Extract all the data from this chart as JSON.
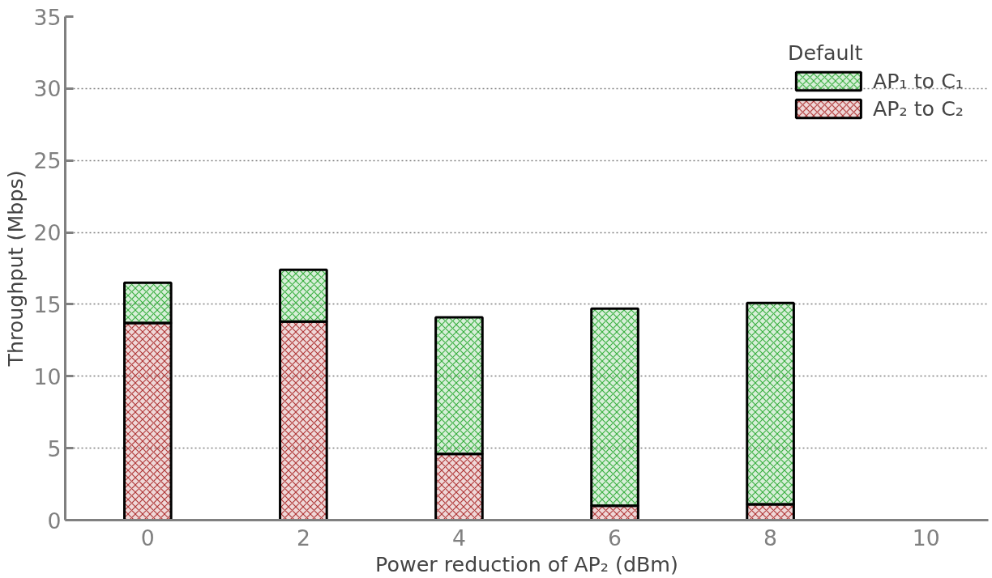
{
  "chart_data": {
    "type": "bar",
    "stacked": true,
    "xlabel": "Power reduction of AP₂ (dBm)",
    "ylabel": "Throughput (Mbps)",
    "legend_title": "Default",
    "categories": [
      "0",
      "2",
      "4",
      "6",
      "8",
      "10"
    ],
    "series": [
      {
        "name": "AP₂ to C₂",
        "color": "#b03a3a",
        "values": [
          13.7,
          13.8,
          4.6,
          1.0,
          1.1,
          null
        ]
      },
      {
        "name": "AP₁ to C₁",
        "color": "#3cb043",
        "values": [
          2.8,
          3.6,
          9.5,
          13.7,
          14.0,
          null
        ]
      }
    ],
    "ylim": [
      0,
      35
    ],
    "yticks": [
      0,
      5,
      10,
      15,
      20,
      25,
      30,
      35
    ],
    "grid": "y",
    "legend": "top right"
  }
}
